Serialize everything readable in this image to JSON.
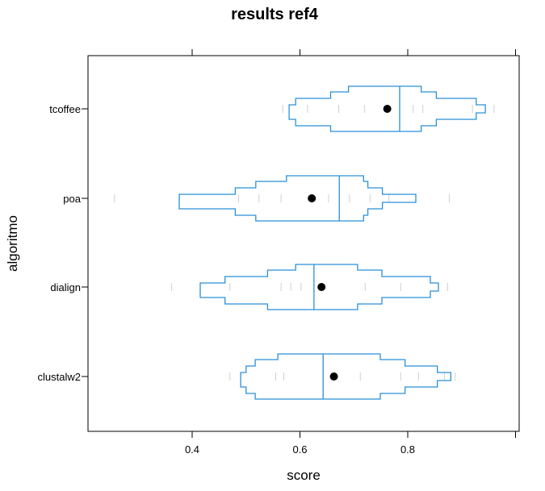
{
  "chart_data": {
    "type": "letter-value-plot",
    "title": "results ref4",
    "xlabel": "score",
    "ylabel": "algoritmo",
    "xlim": [
      0.2,
      1.0
    ],
    "x_ticks": [
      0.4,
      0.6,
      0.8
    ],
    "x_tick_labels": [
      "0.4",
      "0.6",
      "0.8"
    ],
    "categories": [
      "tcoffee",
      "poa",
      "dialign",
      "clustalw2"
    ],
    "box_color": "#2a8fd8",
    "point_color": "#000000",
    "outlier_color": "#cfcfcf",
    "series": [
      {
        "name": "tcoffee",
        "mean": 0.762,
        "median": 0.785,
        "letter_values": [
          [
            0.69,
            0.825
          ],
          [
            0.657,
            0.853
          ],
          [
            0.592,
            0.927
          ],
          [
            0.58,
            0.944
          ]
        ],
        "outliers": [
          0.568,
          0.614,
          0.672,
          0.72,
          0.81,
          0.828,
          0.92,
          0.96
        ]
      },
      {
        "name": "poa",
        "mean": 0.622,
        "median": 0.673,
        "letter_values": [
          [
            0.575,
            0.718
          ],
          [
            0.518,
            0.726
          ],
          [
            0.48,
            0.753
          ],
          [
            0.376,
            0.815
          ]
        ],
        "outliers": [
          0.256,
          0.486,
          0.524,
          0.565,
          0.653,
          0.692,
          0.73,
          0.765,
          0.877
        ]
      },
      {
        "name": "dialign",
        "mean": 0.64,
        "median": 0.626,
        "letter_values": [
          [
            0.592,
            0.707
          ],
          [
            0.54,
            0.752
          ],
          [
            0.461,
            0.842
          ],
          [
            0.415,
            0.857
          ]
        ],
        "outliers": [
          0.362,
          0.47,
          0.565,
          0.583,
          0.602,
          0.721,
          0.787,
          0.874
        ]
      },
      {
        "name": "clustalw2",
        "mean": 0.663,
        "median": 0.643,
        "letter_values": [
          [
            0.559,
            0.749
          ],
          [
            0.517,
            0.795
          ],
          [
            0.5,
            0.855
          ],
          [
            0.49,
            0.88
          ]
        ],
        "outliers": [
          0.47,
          0.555,
          0.57,
          0.712,
          0.787,
          0.82,
          0.868,
          0.888
        ]
      }
    ]
  }
}
